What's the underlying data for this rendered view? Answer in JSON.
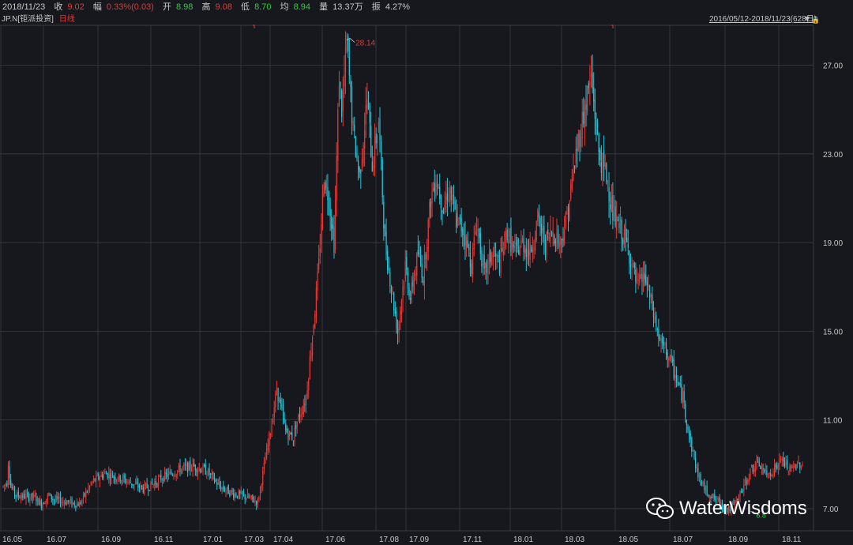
{
  "header": {
    "date": "2018/11/23",
    "close_label": "收",
    "close_value": "9.02",
    "change_label": "幅",
    "change_value": "0.33%(0.03)",
    "open_label": "开",
    "open_value": "8.98",
    "high_label": "高",
    "high_value": "9.08",
    "low_label": "低",
    "low_value": "8.70",
    "avg_label": "均",
    "avg_value": "8.94",
    "volume_label": "量",
    "volume_value": "13.37万",
    "amplitude_label": "振",
    "amplitude_value": "4.27%"
  },
  "subheader": {
    "ticker": "JP.N",
    "name": "[钜派投资]",
    "period": "日线",
    "range": "2016/05/12-2018/11/23(628日)"
  },
  "annotations": {
    "max_label": "28.14",
    "min_label": "6.8"
  },
  "watermark": {
    "text": "WaterWisdoms",
    "icon": "wechat-icon"
  },
  "colors": {
    "up": "#e53935",
    "down": "#26c6da",
    "background": "#16181d",
    "grid": "#3a3d44"
  },
  "chart_data": {
    "type": "candlestick",
    "title": "",
    "xlabel": "",
    "ylabel": "",
    "ylim": [
      6.0,
      28.8
    ],
    "y_ticks": [
      "27.00",
      "23.00",
      "19.00",
      "15.00",
      "11.00",
      "7.00"
    ],
    "x_ticks": [
      "16.05",
      "16.07",
      "16.09",
      "16.11",
      "17.01",
      "17.03",
      "17.04",
      "17.06",
      "17.08",
      "17.09",
      "17.11",
      "18.01",
      "18.03",
      "18.05",
      "18.07",
      "18.09",
      "18.11"
    ],
    "grid": true,
    "trend": {
      "description": "daily price path (approximate)",
      "x": [
        0,
        3,
        4,
        6,
        10,
        25,
        30,
        36,
        40,
        50,
        60,
        70,
        80,
        95,
        110,
        118,
        125,
        140,
        150,
        160,
        170,
        180,
        192,
        200,
        210,
        215,
        222,
        228,
        230,
        238,
        245,
        248,
        252,
        256,
        260,
        264,
        266,
        270,
        275,
        280,
        286,
        290,
        295,
        300,
        305,
        310,
        316,
        320,
        326,
        330,
        336,
        340,
        346,
        350,
        356,
        362,
        368,
        372,
        378,
        384,
        390,
        396,
        402,
        408,
        414,
        420,
        426,
        432,
        438,
        444,
        450,
        455,
        462,
        468,
        474,
        480,
        486,
        492,
        498,
        504,
        510,
        516,
        522,
        528,
        534,
        540,
        546,
        552,
        558,
        564,
        570,
        576,
        582,
        588,
        594,
        600,
        606,
        612,
        618,
        624,
        628
      ],
      "values": [
        8.0,
        8.2,
        9.1,
        8.0,
        7.6,
        7.5,
        7.2,
        7.6,
        7.4,
        7.3,
        7.2,
        8.2,
        8.6,
        8.3,
        7.9,
        8.1,
        8.4,
        8.8,
        8.9,
        8.7,
        8.0,
        7.7,
        7.5,
        7.3,
        10.5,
        12.4,
        10.5,
        10.2,
        10.8,
        12.0,
        16.0,
        18.0,
        22.0,
        21.0,
        19.0,
        26.5,
        25.0,
        28.0,
        24.0,
        22.0,
        25.5,
        22.5,
        24.5,
        19.0,
        17.0,
        15.0,
        18.0,
        16.5,
        18.5,
        17.5,
        21.0,
        22.0,
        20.5,
        21.5,
        20.0,
        19.5,
        18.0,
        20.0,
        17.5,
        18.5,
        18.0,
        19.5,
        18.5,
        19.0,
        18.5,
        20.0,
        19.0,
        19.5,
        19.0,
        20.5,
        23.0,
        24.5,
        26.5,
        23.0,
        22.0,
        20.0,
        19.5,
        18.5,
        17.0,
        17.5,
        16.0,
        14.5,
        14.0,
        13.0,
        12.0,
        10.0,
        8.5,
        7.8,
        7.5,
        7.2,
        6.9,
        7.3,
        8.0,
        8.8,
        9.0,
        8.5,
        8.8,
        9.2,
        8.7,
        9.0,
        9.02
      ]
    },
    "extremes": {
      "max": 28.14,
      "min": 6.8
    }
  }
}
